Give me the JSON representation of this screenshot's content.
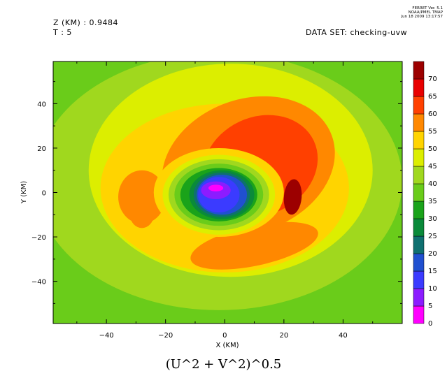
{
  "header": {
    "z_line": "Z (KM) : 0.9484",
    "t_line": "T : 5",
    "dataset_line": "DATA SET: checking-uvw",
    "stamp_lines": [
      "FERRET Ver. 5.1",
      "NOAA/PMEL TMAP",
      "Jun 18 2009 13:17:57"
    ]
  },
  "chart_data": {
    "type": "contour",
    "title": "(U^2 + V^2)^0.5",
    "xlabel": "X (KM)",
    "ylabel": "Y (KM)",
    "xlim": [
      -58,
      60
    ],
    "ylim": [
      -59,
      59
    ],
    "x_ticks": [
      -40,
      -20,
      0,
      20,
      40
    ],
    "x_tick_labels": [
      "−40",
      "−20",
      "0",
      "20",
      "40"
    ],
    "y_ticks": [
      -40,
      -20,
      0,
      20,
      40
    ],
    "y_tick_labels": [
      "−40",
      "−20",
      "0",
      "20",
      "40"
    ],
    "grid": false,
    "colorbar": {
      "levels": [
        0,
        5,
        10,
        15,
        20,
        25,
        30,
        35,
        40,
        45,
        50,
        55,
        60,
        65,
        70
      ],
      "level_labels": [
        "0",
        "5",
        "10",
        "15",
        "20",
        "25",
        "30",
        "35",
        "40",
        "45",
        "50",
        "55",
        "60",
        "65",
        "70"
      ],
      "colors": [
        "#ff00ff",
        "#8c1cff",
        "#3b3bff",
        "#2050d0",
        "#0f7070",
        "#0a8a3a",
        "#1aa31a",
        "#6acc1a",
        "#a0d81e",
        "#dcee00",
        "#ffd400",
        "#ff8800",
        "#ff4000",
        "#e80000",
        "#9c0000"
      ]
    },
    "vortex_center": [
      -1,
      -2
    ],
    "peak_value": 68,
    "peak_location": [
      23,
      -3
    ]
  }
}
